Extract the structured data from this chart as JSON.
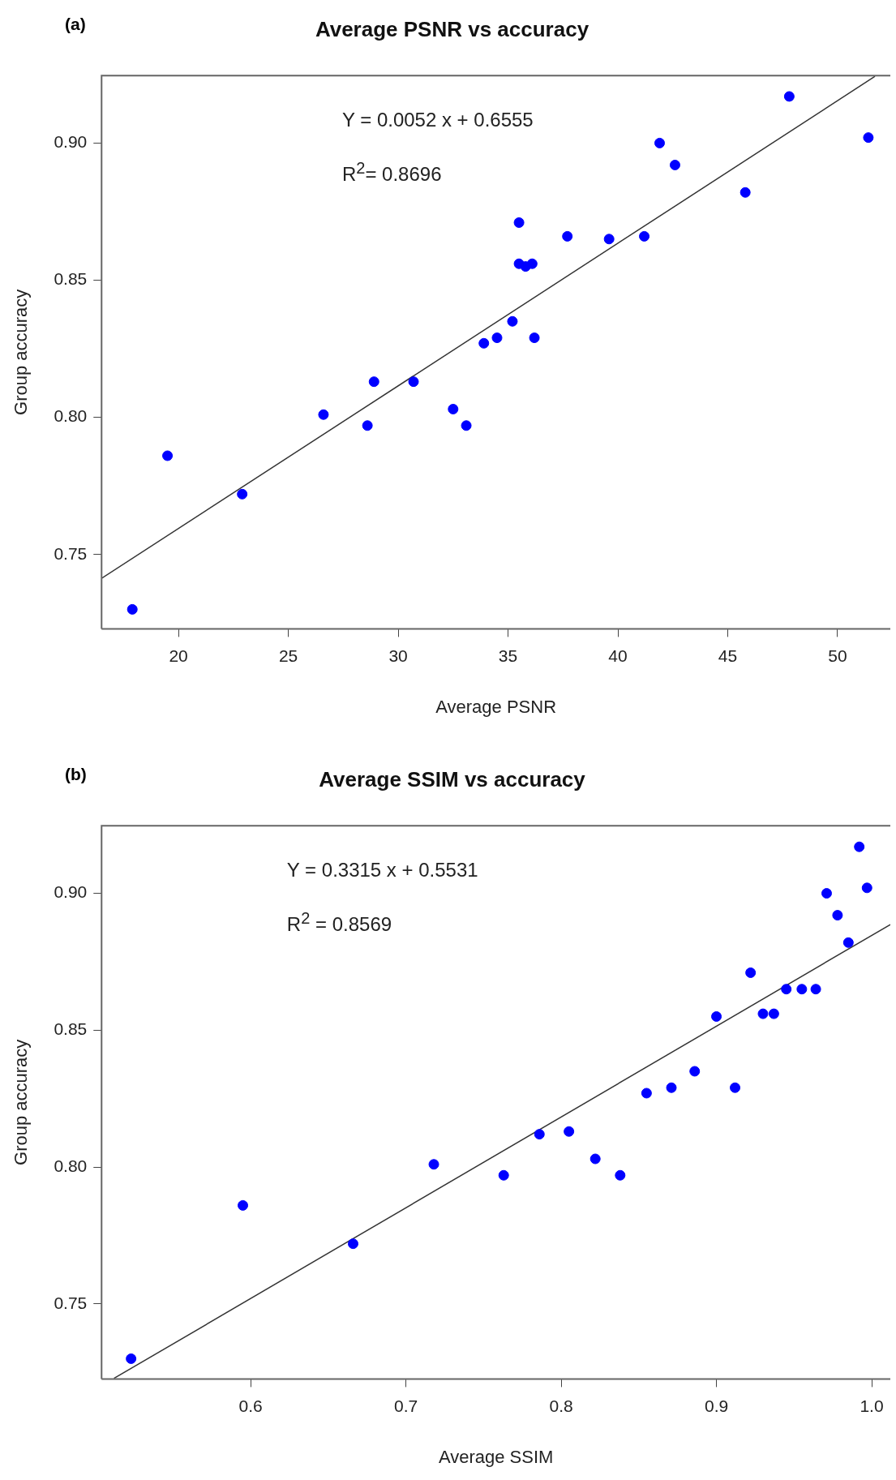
{
  "chart_data": [
    {
      "type": "scatter",
      "title": "Average PSNR vs accuracy",
      "xlabel": "Average PSNR",
      "ylabel": "Group accuracy",
      "annotations": [
        "(a)",
        "Y =  0.0052 x + 0.6555",
        "R$^{2}$= 0.8696"
      ],
      "xlim": [
        16.5,
        52.4
      ],
      "ylim": [
        0.7229,
        0.9246
      ],
      "xticks": [
        20,
        25,
        30,
        35,
        40,
        45,
        50
      ],
      "yticks": [
        {
          "value": 0.75,
          "label": "0.75"
        },
        {
          "value": 0.8,
          "label": "0.80"
        },
        {
          "value": 0.85,
          "label": "0.85"
        },
        {
          "value": 0.9,
          "label": "0.90"
        }
      ],
      "grid": false,
      "legend": false,
      "marker": "circle",
      "series": [
        {
          "type": "scatter",
          "color": "#0000ff",
          "x": [
            17.9,
            19.5,
            22.9,
            26.6,
            28.6,
            28.9,
            30.7,
            32.5,
            33.1,
            33.9,
            34.5,
            35.2,
            35.5,
            35.5,
            35.8,
            36.1,
            36.2,
            37.7,
            39.6,
            41.2,
            41.9,
            42.6,
            45.8,
            47.8,
            51.4
          ],
          "values": [
            0.73,
            0.786,
            0.772,
            0.801,
            0.797,
            0.813,
            0.813,
            0.803,
            0.797,
            0.827,
            0.829,
            0.835,
            0.871,
            0.856,
            0.855,
            0.856,
            0.829,
            0.866,
            0.865,
            0.866,
            0.9,
            0.892,
            0.882,
            0.917,
            0.902
          ]
        },
        {
          "type": "line",
          "color": "#333333",
          "marker": "none",
          "x": [
            16.5,
            51.7
          ],
          "values": [
            0.7413,
            0.9243
          ]
        }
      ]
    },
    {
      "type": "scatter",
      "title": "Average SSIM vs accuracy",
      "xlabel": "Average SSIM",
      "ylabel": "Group accuracy",
      "annotations": [
        "(b)",
        "Y =  0.3315 x + 0.5531",
        "R$^{2}$ = 0.8569"
      ],
      "xlim": [
        0.504,
        1.012
      ],
      "ylim": [
        0.7226,
        0.9247
      ],
      "xticks": [
        {
          "value": 0.6,
          "label": "0.6"
        },
        {
          "value": 0.7,
          "label": "0.7"
        },
        {
          "value": 0.8,
          "label": "0.8"
        },
        {
          "value": 0.9,
          "label": "0.9"
        },
        {
          "value": 1.0,
          "label": "1.0"
        }
      ],
      "yticks": [
        {
          "value": 0.75,
          "label": "0.75"
        },
        {
          "value": 0.8,
          "label": "0.80"
        },
        {
          "value": 0.85,
          "label": "0.85"
        },
        {
          "value": 0.9,
          "label": "0.90"
        }
      ],
      "grid": false,
      "legend": false,
      "marker": "circle",
      "series": [
        {
          "type": "scatter",
          "color": "#0000ff",
          "x": [
            0.523,
            0.595,
            0.666,
            0.718,
            0.763,
            0.786,
            0.805,
            0.822,
            0.838,
            0.855,
            0.871,
            0.886,
            0.9,
            0.912,
            0.922,
            0.93,
            0.937,
            0.945,
            0.955,
            0.964,
            0.971,
            0.978,
            0.985,
            0.992,
            0.997
          ],
          "values": [
            0.73,
            0.786,
            0.772,
            0.801,
            0.797,
            0.812,
            0.813,
            0.803,
            0.797,
            0.827,
            0.829,
            0.835,
            0.855,
            0.829,
            0.871,
            0.856,
            0.856,
            0.865,
            0.865,
            0.865,
            0.9,
            0.892,
            0.882,
            0.917,
            0.902
          ]
        },
        {
          "type": "line",
          "color": "#333333",
          "marker": "none",
          "x": [
            0.512,
            1.012
          ],
          "values": [
            0.7228,
            0.8886
          ]
        }
      ]
    }
  ]
}
